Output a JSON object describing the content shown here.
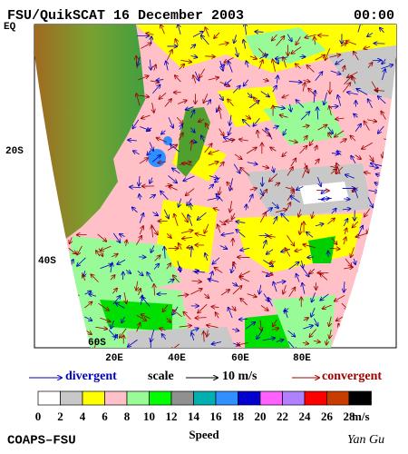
{
  "header": {
    "title": "FSU/QuikSCAT 16 December 2003",
    "time": "00:00"
  },
  "map": {
    "lat_labels": [
      "EQ",
      "20S",
      "40S",
      "60S"
    ],
    "lon_labels": [
      "20E",
      "40E",
      "60E",
      "80E"
    ]
  },
  "key": {
    "divergent": "divergent",
    "scale": "scale",
    "scale_value": "10 m/s",
    "convergent": "convergent"
  },
  "colorbar": {
    "label": "Speed",
    "unit": "m/s",
    "colors": [
      "#ffffff",
      "#c8c8c8",
      "#ffff00",
      "#ffc0c8",
      "#98fb98",
      "#00ff00",
      "#909090",
      "#00b0b0",
      "#3090ff",
      "#0000d0",
      "#ff60ff",
      "#b080ff",
      "#ff0000",
      "#c83c00",
      "#000000"
    ],
    "ticks": [
      "0",
      "2",
      "4",
      "6",
      "8",
      "10",
      "12",
      "14",
      "16",
      "18",
      "20",
      "22",
      "24",
      "26",
      "28"
    ]
  },
  "footer": {
    "left": "COAPS–FSU",
    "right": "Yan Gu"
  }
}
